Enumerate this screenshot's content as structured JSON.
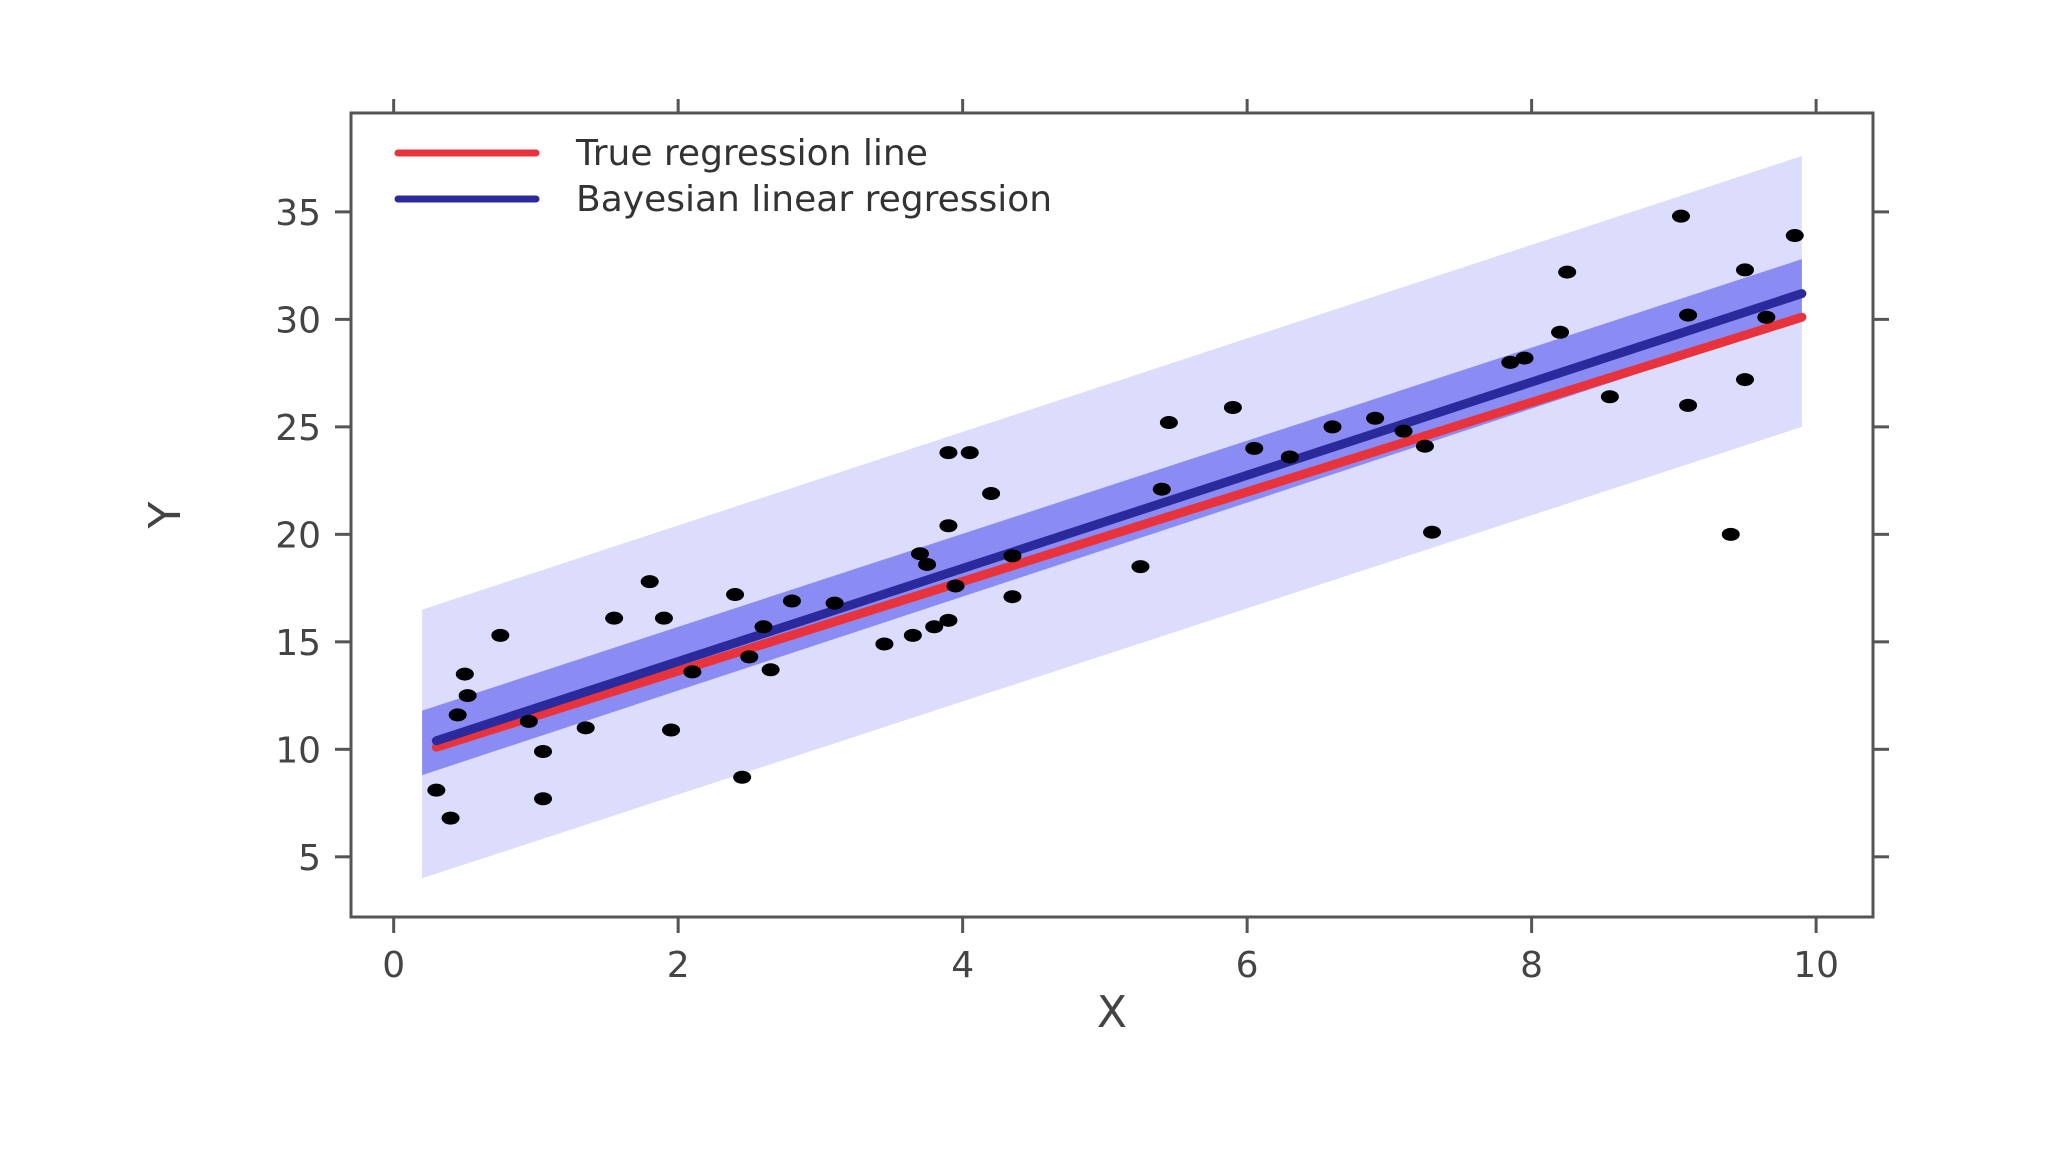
{
  "chart_data": {
    "type": "scatter",
    "title": "",
    "xlabel": "X",
    "ylabel": "Y",
    "xlim": [
      -0.3,
      10.4
    ],
    "ylim": [
      2.2,
      39.6
    ],
    "xticks": [
      0,
      2,
      4,
      6,
      8,
      10
    ],
    "yticks": [
      5,
      10,
      15,
      20,
      25,
      30,
      35
    ],
    "grid": false,
    "legend_position": "top-left",
    "colors": {
      "true_line": "#e8323c",
      "bayes_line": "#2a2a9c",
      "credible_band": "#7d7df2",
      "predictive_band": "#dcdcfc",
      "points": "#000000",
      "axes": "#555555"
    },
    "x_range": [
      0.2,
      9.9
    ],
    "series": [
      {
        "name": "True regression line",
        "type": "line",
        "points": [
          [
            0.3,
            10.1
          ],
          [
            9.9,
            30.1
          ]
        ]
      },
      {
        "name": "Bayesian linear regression",
        "type": "line",
        "points": [
          [
            0.3,
            10.4
          ],
          [
            9.9,
            31.2
          ]
        ]
      },
      {
        "type": "band",
        "role": "credible",
        "x": [
          0.2,
          9.9
        ],
        "lower": [
          8.8,
          30.0
        ],
        "upper": [
          11.8,
          32.8
        ]
      },
      {
        "type": "band",
        "role": "predictive",
        "x": [
          0.2,
          9.9
        ],
        "lower": [
          4.0,
          25.0
        ],
        "upper": [
          16.5,
          37.6
        ]
      },
      {
        "type": "scatter",
        "points": [
          [
            0.3,
            8.1
          ],
          [
            0.4,
            6.8
          ],
          [
            0.45,
            11.6
          ],
          [
            0.5,
            13.5
          ],
          [
            0.52,
            12.5
          ],
          [
            0.75,
            15.3
          ],
          [
            0.95,
            11.3
          ],
          [
            1.05,
            9.9
          ],
          [
            1.05,
            7.7
          ],
          [
            1.35,
            11.0
          ],
          [
            1.55,
            16.1
          ],
          [
            1.8,
            17.8
          ],
          [
            1.9,
            16.1
          ],
          [
            1.95,
            10.9
          ],
          [
            2.1,
            13.6
          ],
          [
            2.4,
            17.2
          ],
          [
            2.45,
            8.7
          ],
          [
            2.5,
            14.3
          ],
          [
            2.6,
            15.7
          ],
          [
            2.65,
            13.7
          ],
          [
            2.8,
            16.9
          ],
          [
            3.1,
            16.8
          ],
          [
            3.45,
            14.9
          ],
          [
            3.65,
            15.3
          ],
          [
            3.7,
            19.1
          ],
          [
            3.75,
            18.6
          ],
          [
            3.8,
            15.7
          ],
          [
            3.9,
            16.0
          ],
          [
            3.9,
            23.8
          ],
          [
            3.9,
            20.4
          ],
          [
            3.95,
            17.6
          ],
          [
            4.05,
            23.8
          ],
          [
            4.2,
            21.9
          ],
          [
            4.35,
            17.1
          ],
          [
            4.35,
            19.0
          ],
          [
            5.25,
            18.5
          ],
          [
            5.4,
            22.1
          ],
          [
            5.45,
            25.2
          ],
          [
            5.9,
            25.9
          ],
          [
            6.05,
            24.0
          ],
          [
            6.3,
            23.6
          ],
          [
            6.6,
            25.0
          ],
          [
            6.9,
            25.4
          ],
          [
            7.1,
            24.8
          ],
          [
            7.25,
            24.1
          ],
          [
            7.3,
            20.1
          ],
          [
            7.85,
            28.0
          ],
          [
            7.95,
            28.2
          ],
          [
            8.2,
            29.4
          ],
          [
            8.25,
            32.2
          ],
          [
            8.55,
            26.4
          ],
          [
            9.05,
            34.8
          ],
          [
            9.1,
            30.2
          ],
          [
            9.1,
            26.0
          ],
          [
            9.4,
            20.0
          ],
          [
            9.5,
            27.2
          ],
          [
            9.5,
            32.3
          ],
          [
            9.65,
            30.1
          ],
          [
            9.85,
            33.9
          ]
        ]
      }
    ]
  }
}
